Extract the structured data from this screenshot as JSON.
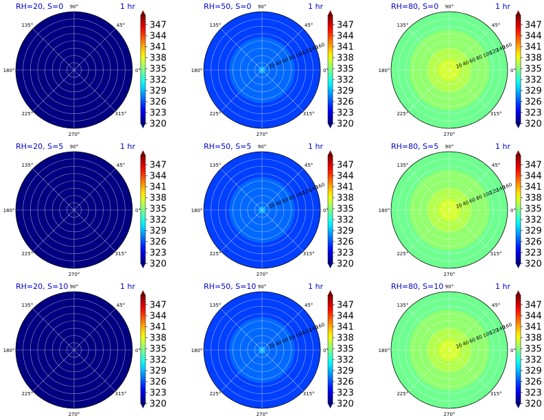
{
  "chart_data": {
    "type": "heatmap",
    "projection": "polar",
    "grid": true,
    "colormap": "jet",
    "angle_ticks": [
      "0°",
      "45°",
      "90°",
      "135°",
      "180°",
      "225°",
      "270°",
      "315°"
    ],
    "radial_ticks": [
      "20",
      "40",
      "60",
      "80",
      "100",
      "120",
      "140",
      "160"
    ],
    "colorbar_ticks": [
      "320",
      "323",
      "326",
      "329",
      "332",
      "335",
      "338",
      "341",
      "344",
      "347"
    ],
    "colorbar_range": [
      320,
      350
    ],
    "time_label": "1 hr",
    "panels": [
      {
        "title": "RH=20, S=0",
        "radial_labels": false,
        "zones": [
          {
            "r": [
              0,
              160
            ],
            "value": 320
          }
        ]
      },
      {
        "title": "RH=50, S=0",
        "radial_labels": true,
        "zones": [
          {
            "r": [
              0,
              10
            ],
            "value": 328.5
          },
          {
            "r": [
              10,
              90
            ],
            "value": 326.8
          },
          {
            "r": [
              90,
              160
            ],
            "value": 325.6
          }
        ]
      },
      {
        "title": "RH=80, S=0",
        "radial_labels": true,
        "zones": [
          {
            "r": [
              0,
              30
            ],
            "value": 337.5
          },
          {
            "r": [
              30,
              60
            ],
            "value": 336.5
          },
          {
            "r": [
              60,
              110
            ],
            "value": 335.5
          },
          {
            "r": [
              110,
              160
            ],
            "value": 334.5
          }
        ]
      },
      {
        "title": "RH=20, S=5",
        "radial_labels": false,
        "zones": [
          {
            "r": [
              0,
              160
            ],
            "value": 320
          }
        ]
      },
      {
        "title": "RH=50, S=5",
        "radial_labels": true,
        "zones": [
          {
            "r": [
              0,
              10
            ],
            "value": 328.5
          },
          {
            "r": [
              10,
              90
            ],
            "value": 326.8
          },
          {
            "r": [
              90,
              160
            ],
            "value": 325.6
          }
        ]
      },
      {
        "title": "RH=80, S=5",
        "radial_labels": true,
        "zones": [
          {
            "r": [
              0,
              30
            ],
            "value": 337.5
          },
          {
            "r": [
              30,
              60
            ],
            "value": 336.5
          },
          {
            "r": [
              60,
              110
            ],
            "value": 335.5
          },
          {
            "r": [
              110,
              160
            ],
            "value": 334.5
          }
        ]
      },
      {
        "title": "RH=20, S=10",
        "radial_labels": false,
        "zones": [
          {
            "r": [
              0,
              160
            ],
            "value": 320
          }
        ]
      },
      {
        "title": "RH=50, S=10",
        "radial_labels": true,
        "zones": [
          {
            "r": [
              0,
              10
            ],
            "value": 328.5
          },
          {
            "r": [
              10,
              90
            ],
            "value": 326.8
          },
          {
            "r": [
              90,
              160
            ],
            "value": 325.6
          }
        ]
      },
      {
        "title": "RH=80, S=10",
        "radial_labels": true,
        "zones": [
          {
            "r": [
              0,
              30
            ],
            "value": 337.5
          },
          {
            "r": [
              30,
              60
            ],
            "value": 336.5
          },
          {
            "r": [
              60,
              110
            ],
            "value": 335.5
          },
          {
            "r": [
              110,
              160
            ],
            "value": 334.5
          }
        ]
      }
    ]
  }
}
